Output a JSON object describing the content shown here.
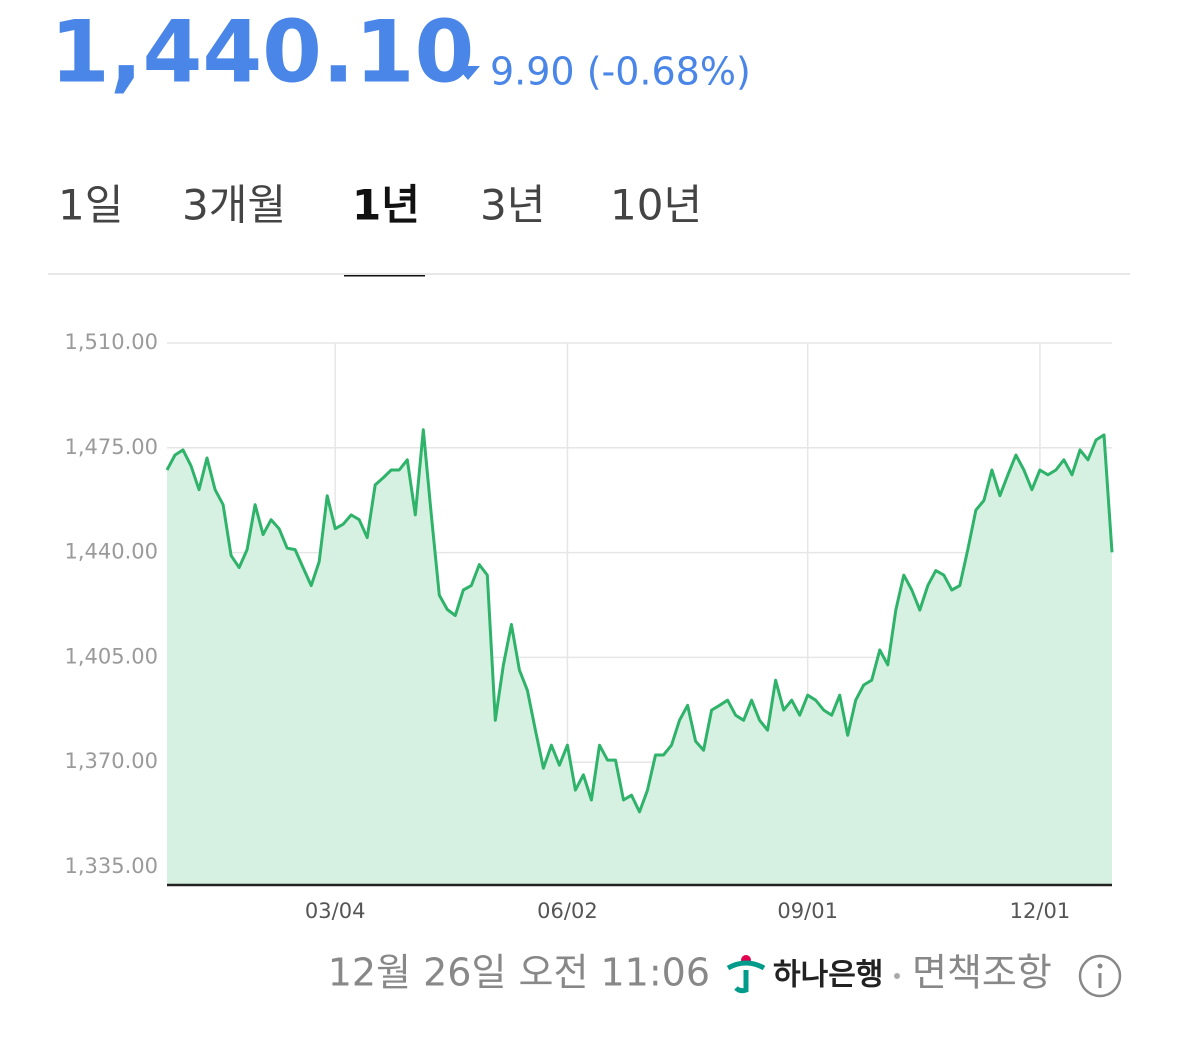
{
  "header": {
    "price": "1,440.10",
    "change": "9.90 (-0.68%)"
  },
  "tabs": {
    "items": [
      "1일",
      "3개월",
      "1년",
      "3년",
      "10년"
    ],
    "selected": 2
  },
  "chart_data": {
    "type": "line",
    "color": "#2fb36a",
    "fill_color": "#d6f1e2",
    "area": true,
    "grid": true,
    "categories": [
      null,
      null,
      null,
      null,
      null,
      null,
      null,
      null,
      null,
      null,
      null,
      null,
      null,
      null,
      null,
      null,
      null,
      null,
      null,
      null,
      null,
      "03/04",
      null,
      null,
      null,
      null,
      null,
      null,
      null,
      null,
      null,
      null,
      null,
      null,
      null,
      null,
      null,
      null,
      null,
      null,
      null,
      null,
      null,
      null,
      null,
      null,
      null,
      null,
      null,
      null,
      "06/02",
      null,
      null,
      null,
      null,
      null,
      null,
      null,
      null,
      null,
      null,
      null,
      null,
      null,
      null,
      null,
      null,
      null,
      null,
      null,
      null,
      null,
      null,
      null,
      null,
      null,
      null,
      null,
      null,
      null,
      "09/01",
      null,
      null,
      null,
      null,
      null,
      null,
      null,
      null,
      null,
      null,
      null,
      null,
      null,
      null,
      null,
      null,
      null,
      null,
      null,
      null,
      null,
      null,
      null,
      null,
      null,
      null,
      null,
      null,
      "12/01",
      null,
      null,
      null,
      null,
      null,
      null,
      null,
      null,
      null
    ],
    "values": [
      1467.6,
      1472.6,
      1474.3,
      1469,
      1461,
      1471.6,
      1461,
      1456,
      1439,
      1435,
      1441,
      1456,
      1446,
      1451,
      1448,
      1441.5,
      1441,
      1435,
      1429,
      1437,
      1459,
      1448,
      1449.5,
      1452.6,
      1451,
      1445,
      1462.6,
      1465,
      1467.6,
      1467.6,
      1471,
      1452.6,
      1481,
      1452.6,
      1425.8,
      1421,
      1419,
      1427.5,
      1429,
      1436,
      1432.5,
      1384,
      1402.5,
      1416,
      1400.8,
      1394,
      1380.7,
      1368,
      1375.7,
      1369,
      1375.7,
      1360.7,
      1365.8,
      1357.4,
      1375.7,
      1370.7,
      1370.7,
      1357.4,
      1359,
      1353.4,
      1360.7,
      1372.4,
      1372.4,
      1375.7,
      1384,
      1389,
      1377,
      1374,
      1387.4,
      1389,
      1390.7,
      1385.7,
      1384,
      1390.7,
      1384,
      1380.7,
      1397.4,
      1387.4,
      1390.7,
      1385.7,
      1392.4,
      1390.7,
      1387.4,
      1385.7,
      1392.4,
      1379,
      1390.7,
      1395.8,
      1397.4,
      1407.5,
      1402.5,
      1420.8,
      1432.5,
      1427.5,
      1420.8,
      1429,
      1434,
      1432.5,
      1427.5,
      1429,
      1441,
      1454.2,
      1457.4,
      1467.6,
      1459,
      1466,
      1472.6,
      1467.6,
      1461,
      1467.6,
      1466,
      1467.6,
      1471,
      1466,
      1474.3,
      1471,
      1477.6,
      1479.3,
      1440.1
    ],
    "ylim": [
      1329,
      1510
    ],
    "yticks": [
      {
        "value": 1335,
        "label": "1,335.00"
      },
      {
        "value": 1370,
        "label": "1,370.00"
      },
      {
        "value": 1405,
        "label": "1,405.00"
      },
      {
        "value": 1440,
        "label": "1,440.00"
      },
      {
        "value": 1475,
        "label": "1,475.00"
      },
      {
        "value": 1510,
        "label": "1,510.00"
      }
    ]
  },
  "footer": {
    "timestamp": "12월 26일 오전 11:06",
    "source": "하나은행",
    "disclaimer": "면책조항"
  }
}
